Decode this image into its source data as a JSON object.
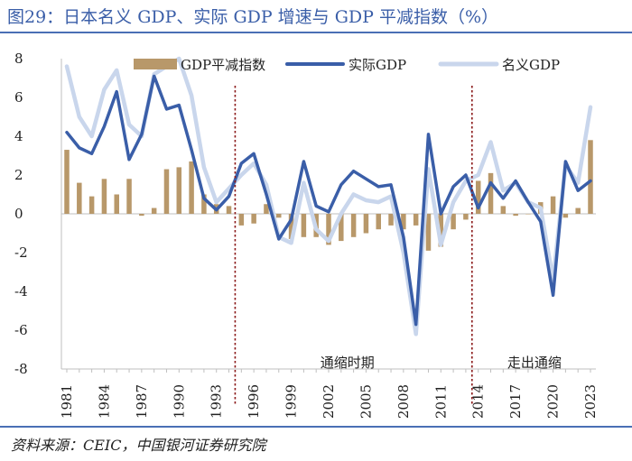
{
  "header": {
    "title": "图29：日本名义 GDP、实际 GDP 增速与 GDP 平减指数（%）"
  },
  "footer": {
    "source": "资料来源：CEIC，中国银河证券研究院"
  },
  "colors": {
    "deflator": "#b8986a",
    "real": "#3a5ea8",
    "nominal": "#c9d6ec",
    "divider": "#8b1a1a",
    "rule": "#4a6fb5"
  },
  "chart_data": {
    "type": "bar+line",
    "title": "",
    "ylim": [
      -8,
      8
    ],
    "yticks": [
      -8,
      -6,
      -4,
      -2,
      0,
      2,
      4,
      6,
      8
    ],
    "grid": false,
    "legend_position": "top",
    "x": [
      1981,
      1982,
      1983,
      1984,
      1985,
      1986,
      1987,
      1988,
      1989,
      1990,
      1991,
      1992,
      1993,
      1994,
      1995,
      1996,
      1997,
      1998,
      1999,
      2000,
      2001,
      2002,
      2003,
      2004,
      2005,
      2006,
      2007,
      2008,
      2009,
      2010,
      2011,
      2012,
      2013,
      2014,
      2015,
      2016,
      2017,
      2018,
      2019,
      2020,
      2021,
      2022,
      2023
    ],
    "xtick_labels": [
      "1981",
      "1984",
      "1987",
      "1990",
      "1993",
      "1996",
      "1999",
      "2002",
      "2005",
      "2008",
      "2011",
      "2014",
      "2017",
      "2020",
      "2023"
    ],
    "series": [
      {
        "name": "GDP平减指数",
        "kind": "bar",
        "values": [
          3.3,
          1.6,
          0.9,
          1.8,
          1.0,
          1.8,
          -0.1,
          0.3,
          2.3,
          2.4,
          2.7,
          1.0,
          0.5,
          0.4,
          -0.6,
          -0.5,
          0.5,
          -0.2,
          -1.3,
          -1.2,
          -1.2,
          -1.6,
          -1.4,
          -1.2,
          -1.0,
          -0.8,
          -0.6,
          -0.8,
          -0.6,
          -1.9,
          -1.7,
          -0.8,
          -0.3,
          1.7,
          2.1,
          0.4,
          -0.1,
          0.0,
          0.6,
          0.9,
          -0.2,
          0.3,
          3.8
        ]
      },
      {
        "name": "实际GDP",
        "kind": "line",
        "values": [
          4.2,
          3.4,
          3.1,
          4.5,
          6.3,
          2.8,
          4.1,
          7.1,
          5.4,
          5.6,
          3.3,
          0.8,
          0.2,
          0.9,
          2.6,
          3.1,
          1.0,
          -1.3,
          -0.3,
          2.7,
          0.4,
          0.1,
          1.5,
          2.2,
          1.8,
          1.4,
          1.5,
          -1.2,
          -5.7,
          4.1,
          0.0,
          1.4,
          2.0,
          0.3,
          1.6,
          0.8,
          1.7,
          0.6,
          -0.4,
          -4.2,
          2.7,
          1.2,
          1.7
        ]
      },
      {
        "name": "名义GDP",
        "kind": "line",
        "values": [
          7.6,
          5.0,
          4.0,
          6.4,
          7.4,
          4.6,
          4.0,
          7.2,
          7.6,
          8.0,
          6.1,
          2.4,
          0.6,
          1.3,
          2.0,
          2.6,
          1.5,
          -1.2,
          -1.5,
          1.6,
          -0.8,
          -1.4,
          0.0,
          1.0,
          0.7,
          0.6,
          0.9,
          -2.0,
          -6.2,
          2.3,
          -1.6,
          0.6,
          1.7,
          2.0,
          3.7,
          1.2,
          1.6,
          0.6,
          0.3,
          -3.4,
          2.5,
          1.6,
          5.5
        ]
      }
    ],
    "dividers": [
      1994.5,
      2013.5
    ],
    "annotations": [
      {
        "text": "通缩时期",
        "x": 2003.5,
        "y": -8
      },
      {
        "text": "走出通缩",
        "x": 2018.5,
        "y": -8
      }
    ]
  }
}
